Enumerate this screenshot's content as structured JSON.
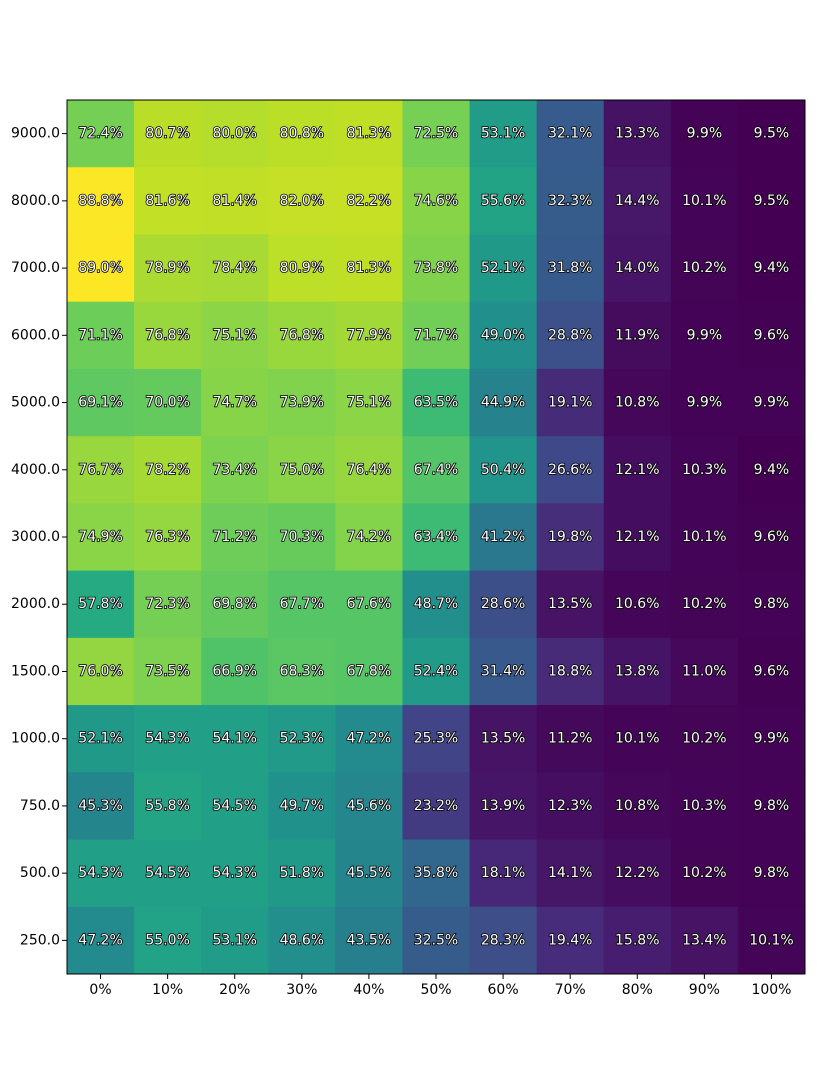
{
  "chart_data": {
    "type": "heatmap",
    "title": "",
    "xlabel": "",
    "ylabel": "",
    "x_categories": [
      "0%",
      "10%",
      "20%",
      "30%",
      "40%",
      "50%",
      "60%",
      "70%",
      "80%",
      "90%",
      "100%"
    ],
    "y_categories": [
      "9000.0",
      "8000.0",
      "7000.0",
      "6000.0",
      "5000.0",
      "4000.0",
      "3000.0",
      "2000.0",
      "1500.0",
      "1000.0",
      "750.0",
      "500.0",
      "250.0"
    ],
    "value_format": "percent_1dp",
    "colormap": "viridis",
    "color_range": [
      9.4,
      89.0
    ],
    "values": [
      [
        72.4,
        80.7,
        80.0,
        80.8,
        81.3,
        72.5,
        53.1,
        32.1,
        13.3,
        9.9,
        9.5
      ],
      [
        88.8,
        81.6,
        81.4,
        82.0,
        82.2,
        74.6,
        55.6,
        32.3,
        14.4,
        10.1,
        9.5
      ],
      [
        89.0,
        78.9,
        78.4,
        80.9,
        81.3,
        73.8,
        52.1,
        31.8,
        14.0,
        10.2,
        9.4
      ],
      [
        71.1,
        76.8,
        75.1,
        76.8,
        77.9,
        71.7,
        49.0,
        28.8,
        11.9,
        9.9,
        9.6
      ],
      [
        69.1,
        70.0,
        74.7,
        73.9,
        75.1,
        63.5,
        44.9,
        19.1,
        10.8,
        9.9,
        9.9
      ],
      [
        76.7,
        78.2,
        73.4,
        75.0,
        76.4,
        67.4,
        50.4,
        26.6,
        12.1,
        10.3,
        9.4
      ],
      [
        74.9,
        76.3,
        71.2,
        70.3,
        74.2,
        63.4,
        41.2,
        19.8,
        12.1,
        10.1,
        9.6
      ],
      [
        57.8,
        72.3,
        69.8,
        67.7,
        67.6,
        48.7,
        28.6,
        13.5,
        10.6,
        10.2,
        9.8
      ],
      [
        76.0,
        73.5,
        66.9,
        68.3,
        67.8,
        52.4,
        31.4,
        18.8,
        13.8,
        11.0,
        9.6
      ],
      [
        52.1,
        54.3,
        54.1,
        52.3,
        47.2,
        25.3,
        13.5,
        11.2,
        10.1,
        10.2,
        9.9
      ],
      [
        45.3,
        55.8,
        54.5,
        49.7,
        45.6,
        23.2,
        13.9,
        12.3,
        10.8,
        10.3,
        9.8
      ],
      [
        54.3,
        54.5,
        54.3,
        51.8,
        45.5,
        35.8,
        18.1,
        14.1,
        12.2,
        10.2,
        9.8
      ],
      [
        47.2,
        55.0,
        53.1,
        48.6,
        43.5,
        32.5,
        28.3,
        19.4,
        15.8,
        13.4,
        10.1
      ]
    ],
    "cell_labels": [
      [
        "72.4%",
        "80.7%",
        "80.0%",
        "80.8%",
        "81.3%",
        "72.5%",
        "53.1%",
        "32.1%",
        "13.3%",
        "9.9%",
        "9.5%"
      ],
      [
        "88.8%",
        "81.6%",
        "81.4%",
        "82.0%",
        "82.2%",
        "74.6%",
        "55.6%",
        "32.3%",
        "14.4%",
        "10.1%",
        "9.5%"
      ],
      [
        "89.0%",
        "78.9%",
        "78.4%",
        "80.9%",
        "81.3%",
        "73.8%",
        "52.1%",
        "31.8%",
        "14.0%",
        "10.2%",
        "9.4%"
      ],
      [
        "71.1%",
        "76.8%",
        "75.1%",
        "76.8%",
        "77.9%",
        "71.7%",
        "49.0%",
        "28.8%",
        "11.9%",
        "9.9%",
        "9.6%"
      ],
      [
        "69.1%",
        "70.0%",
        "74.7%",
        "73.9%",
        "75.1%",
        "63.5%",
        "44.9%",
        "19.1%",
        "10.8%",
        "9.9%",
        "9.9%"
      ],
      [
        "76.7%",
        "78.2%",
        "73.4%",
        "75.0%",
        "76.4%",
        "67.4%",
        "50.4%",
        "26.6%",
        "12.1%",
        "10.3%",
        "9.4%"
      ],
      [
        "74.9%",
        "76.3%",
        "71.2%",
        "70.3%",
        "74.2%",
        "63.4%",
        "41.2%",
        "19.8%",
        "12.1%",
        "10.1%",
        "9.6%"
      ],
      [
        "57.8%",
        "72.3%",
        "69.8%",
        "67.7%",
        "67.6%",
        "48.7%",
        "28.6%",
        "13.5%",
        "10.6%",
        "10.2%",
        "9.8%"
      ],
      [
        "76.0%",
        "73.5%",
        "66.9%",
        "68.3%",
        "67.8%",
        "52.4%",
        "31.4%",
        "18.8%",
        "13.8%",
        "11.0%",
        "9.6%"
      ],
      [
        "52.1%",
        "54.3%",
        "54.1%",
        "52.3%",
        "47.2%",
        "25.3%",
        "13.5%",
        "11.2%",
        "10.1%",
        "10.2%",
        "9.9%"
      ],
      [
        "45.3%",
        "55.8%",
        "54.5%",
        "49.7%",
        "45.6%",
        "23.2%",
        "13.9%",
        "12.3%",
        "10.8%",
        "10.3%",
        "9.8%"
      ],
      [
        "54.3%",
        "54.5%",
        "54.3%",
        "51.8%",
        "45.5%",
        "35.8%",
        "18.1%",
        "14.1%",
        "12.2%",
        "10.2%",
        "9.8%"
      ],
      [
        "47.2%",
        "55.0%",
        "53.1%",
        "48.6%",
        "43.5%",
        "32.5%",
        "28.3%",
        "19.4%",
        "15.8%",
        "13.4%",
        "10.1%"
      ]
    ],
    "grid": false,
    "legend": "none"
  }
}
